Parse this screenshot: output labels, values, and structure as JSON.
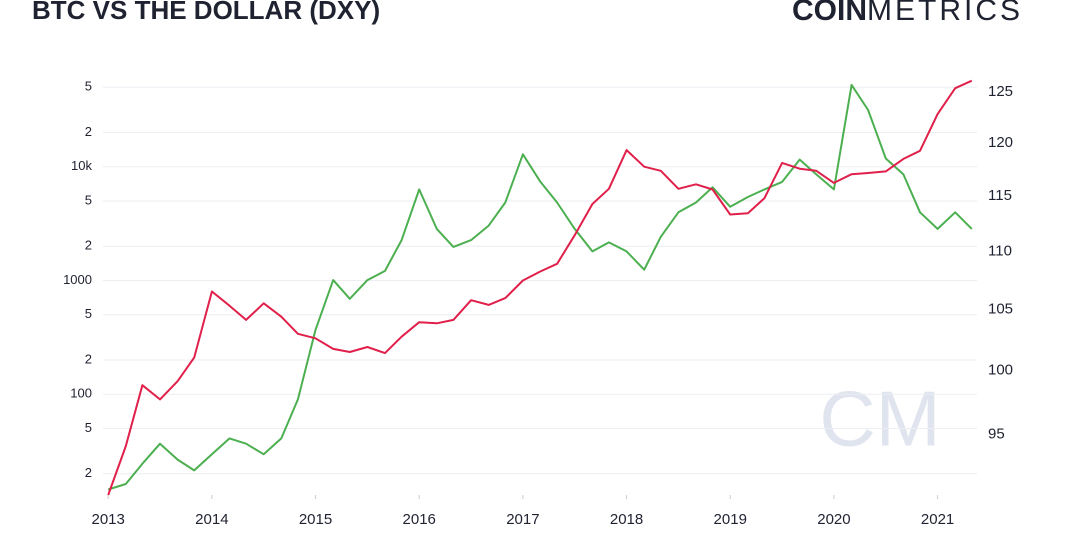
{
  "chart_data": {
    "type": "line",
    "title": "BTC VS THE DOLLAR (DXY)",
    "logo": {
      "bold": "COIN",
      "light": "METRICS"
    },
    "watermark": "CM",
    "x": [
      2013.0,
      2013.17,
      2013.33,
      2013.5,
      2013.67,
      2013.83,
      2014.0,
      2014.17,
      2014.33,
      2014.5,
      2014.67,
      2014.83,
      2015.0,
      2015.17,
      2015.33,
      2015.5,
      2015.67,
      2015.83,
      2016.0,
      2016.17,
      2016.33,
      2016.5,
      2016.67,
      2016.83,
      2017.0,
      2017.17,
      2017.33,
      2017.5,
      2017.67,
      2017.83,
      2018.0,
      2018.17,
      2018.33,
      2018.5,
      2018.67,
      2018.83,
      2019.0,
      2019.17,
      2019.33,
      2019.5,
      2019.67,
      2019.83,
      2020.0,
      2020.17,
      2020.33,
      2020.5,
      2020.67,
      2020.83,
      2021.0,
      2021.17,
      2021.33
    ],
    "series": [
      {
        "name": "BTC",
        "color": "#e0204a",
        "axis": "y",
        "values": [
          13,
          35,
          120,
          90,
          130,
          210,
          800,
          600,
          450,
          630,
          480,
          340,
          310,
          250,
          235,
          260,
          230,
          320,
          430,
          420,
          450,
          670,
          610,
          700,
          1000,
          1200,
          1400,
          2500,
          4700,
          6400,
          14000,
          10000,
          9200,
          6400,
          7000,
          6300,
          3800,
          3900,
          5300,
          10800,
          9600,
          9200,
          7200,
          8600,
          8800,
          9100,
          11700,
          13800,
          29000,
          49000,
          57000
        ]
      },
      {
        "name": "DXY",
        "color": "#4caf50",
        "axis": "y2",
        "values": [
          90.9,
          91.3,
          92.8,
          94.3,
          93.1,
          92.3,
          93.5,
          94.7,
          94.3,
          93.5,
          94.7,
          97.7,
          103.3,
          107.5,
          105.9,
          107.5,
          108.3,
          111,
          115.6,
          112,
          110.4,
          111,
          112.3,
          114.4,
          118.9,
          116.3,
          114.4,
          112,
          110,
          110.8,
          110,
          108.4,
          111.3,
          113.5,
          114.4,
          115.8,
          114,
          114.9,
          115.6,
          116.3,
          118.4,
          117,
          115.6,
          125.7,
          123.2,
          118.5,
          117,
          113.5,
          112,
          113.5,
          112
        ]
      }
    ],
    "xlim": [
      2012.95,
      2021.38
    ],
    "xticks": [
      2013,
      2014,
      2015,
      2016,
      2017,
      2018,
      2019,
      2020,
      2021
    ],
    "ylim": [
      13,
      64000
    ],
    "ylog": true,
    "yticks": [
      {
        "value": 20,
        "label": "2"
      },
      {
        "value": 50,
        "label": "5"
      },
      100,
      {
        "value": 200,
        "label": "2"
      },
      {
        "value": 500,
        "label": "5"
      },
      1000,
      {
        "value": 2000,
        "label": "2"
      },
      {
        "value": 5000,
        "label": "5"
      },
      {
        "value": 10000,
        "label": "10k"
      },
      {
        "value": 20000,
        "label": "2"
      },
      {
        "value": 50000,
        "label": "5"
      }
    ],
    "y2lim": [
      90.5,
      126.7
    ],
    "y2log": true,
    "y2ticks": [
      95,
      100,
      105,
      110,
      115,
      120,
      125
    ],
    "grid": true
  }
}
